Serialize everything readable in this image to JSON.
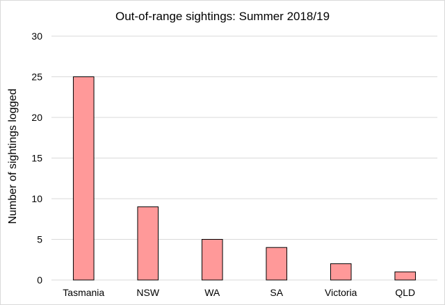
{
  "chart_data": {
    "type": "bar",
    "title": "Out-of-range sightings: Summer 2018/19",
    "xlabel": "",
    "ylabel": "Number of sightings logged",
    "categories": [
      "Tasmania",
      "NSW",
      "WA",
      "SA",
      "Victoria",
      "QLD"
    ],
    "values": [
      25,
      9,
      5,
      4,
      2,
      1
    ],
    "ylim": [
      0,
      30
    ],
    "yticks": [
      0,
      5,
      10,
      15,
      20,
      25,
      30
    ],
    "grid": true,
    "legend": "none",
    "colors": {
      "bar_fill": "#ff9999",
      "bar_stroke": "#000000",
      "grid": "#d9d9d9"
    }
  }
}
